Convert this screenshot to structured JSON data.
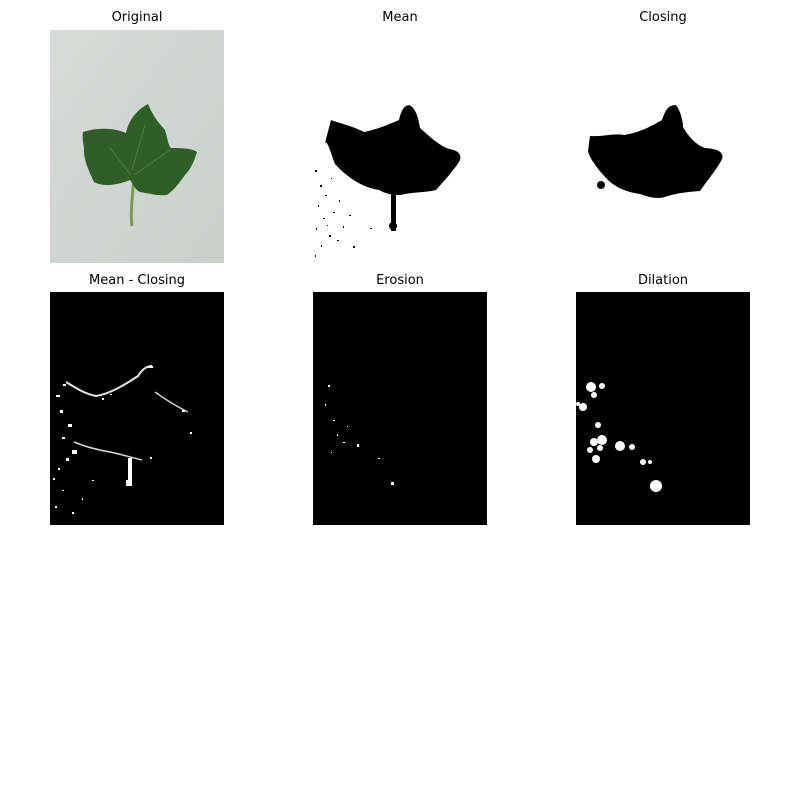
{
  "figure": {
    "panels": [
      {
        "title": "Original"
      },
      {
        "title": "Mean"
      },
      {
        "title": "Closing"
      },
      {
        "title": "Mean - Closing"
      },
      {
        "title": "Erosion"
      },
      {
        "title": "Dilation"
      }
    ]
  }
}
